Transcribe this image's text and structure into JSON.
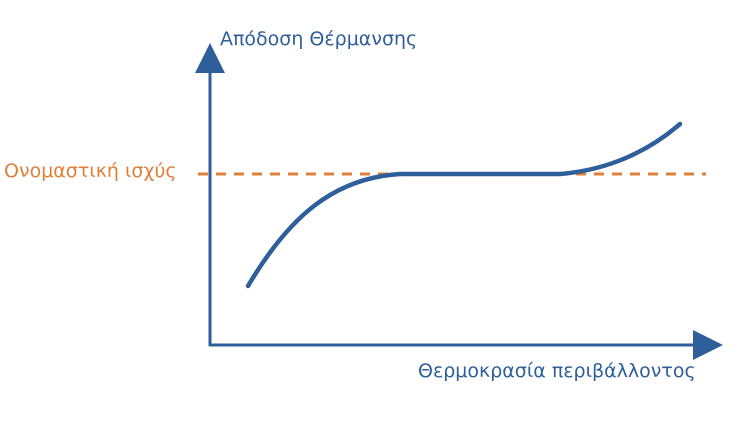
{
  "diagram": {
    "y_axis_label": "Απόδοση Θέρμανσης",
    "x_axis_label": "Θερμοκρασία περιβάλλοντος",
    "rated_power_label": "Ονομαστική ισχύς",
    "colors": {
      "axes": "#2f5f9a",
      "curve": "#2f5f9a",
      "rated_line": "#e07f3a",
      "rated_label": "#e07f3a",
      "axis_labels": "#2f5f9a"
    }
  }
}
